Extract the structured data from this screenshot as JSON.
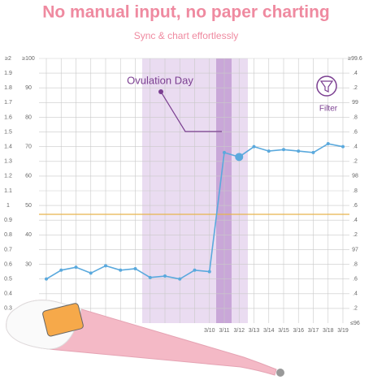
{
  "title": "No manual input, no paper charting",
  "subtitle": "Sync & chart effortlessly",
  "chart_data": {
    "type": "line",
    "categories": [
      null,
      null,
      null,
      null,
      null,
      null,
      null,
      null,
      null,
      null,
      null,
      "3/10",
      "3/11",
      "3/12",
      "3/13",
      "3/14",
      "3/15",
      "3/16",
      "3/17",
      "3/18",
      "3/19"
    ],
    "series": [
      {
        "color": "#5aa9dd",
        "values": [
          0.5,
          0.56,
          0.58,
          0.54,
          0.59,
          0.56,
          0.57,
          0.51,
          0.52,
          0.5,
          0.56,
          0.55,
          1.36,
          1.33,
          1.4,
          1.37,
          1.38,
          1.37,
          1.36,
          1.42,
          1.4
        ]
      }
    ],
    "ylim": [
      0.2,
      2.0
    ],
    "yticks": [
      {
        "value": 2,
        "label": "≥2"
      },
      1.9,
      1.8,
      1.7,
      1.6,
      1.5,
      1.4,
      1.3,
      1.2,
      1.1,
      1,
      0.9,
      0.8,
      0.7,
      0.6,
      0.5,
      0.4,
      0.3
    ],
    "y3lim": [
      10,
      100
    ],
    "y3ticks": [
      {
        "value": 100,
        "label": "≥100"
      },
      90,
      80,
      70,
      60,
      50,
      40,
      30
    ],
    "y2lim": [
      96,
      99.6
    ],
    "y2ticks": [
      {
        "value": 99.6,
        "label": "≥99.6"
      },
      {
        "value": 99.4,
        "label": ".4"
      },
      {
        "value": 99.2,
        "label": ".2"
      },
      99,
      {
        "value": 98.8,
        "label": ".8"
      },
      {
        "value": 98.6,
        "label": ".6"
      },
      {
        "value": 98.4,
        "label": ".4"
      },
      {
        "value": 98.2,
        "label": ".2"
      },
      98,
      {
        "value": 97.8,
        "label": ".8"
      },
      {
        "value": 97.6,
        "label": ".6"
      },
      {
        "value": 97.4,
        "label": ".4"
      },
      {
        "value": 97.2,
        "label": ".2"
      },
      97,
      {
        "value": 96.8,
        "label": ".8"
      },
      {
        "value": 96.6,
        "label": ".6"
      },
      {
        "value": 96.4,
        "label": ".4"
      },
      {
        "value": 96.2,
        "label": ".2"
      },
      {
        "value": 96,
        "label": "≤96"
      }
    ],
    "cover_line": {
      "value": 0.94,
      "color": "#e8b44c"
    },
    "highlight_day": "3/11",
    "annotations": [
      "Ovulation Day",
      "Filter"
    ],
    "grid": true
  }
}
